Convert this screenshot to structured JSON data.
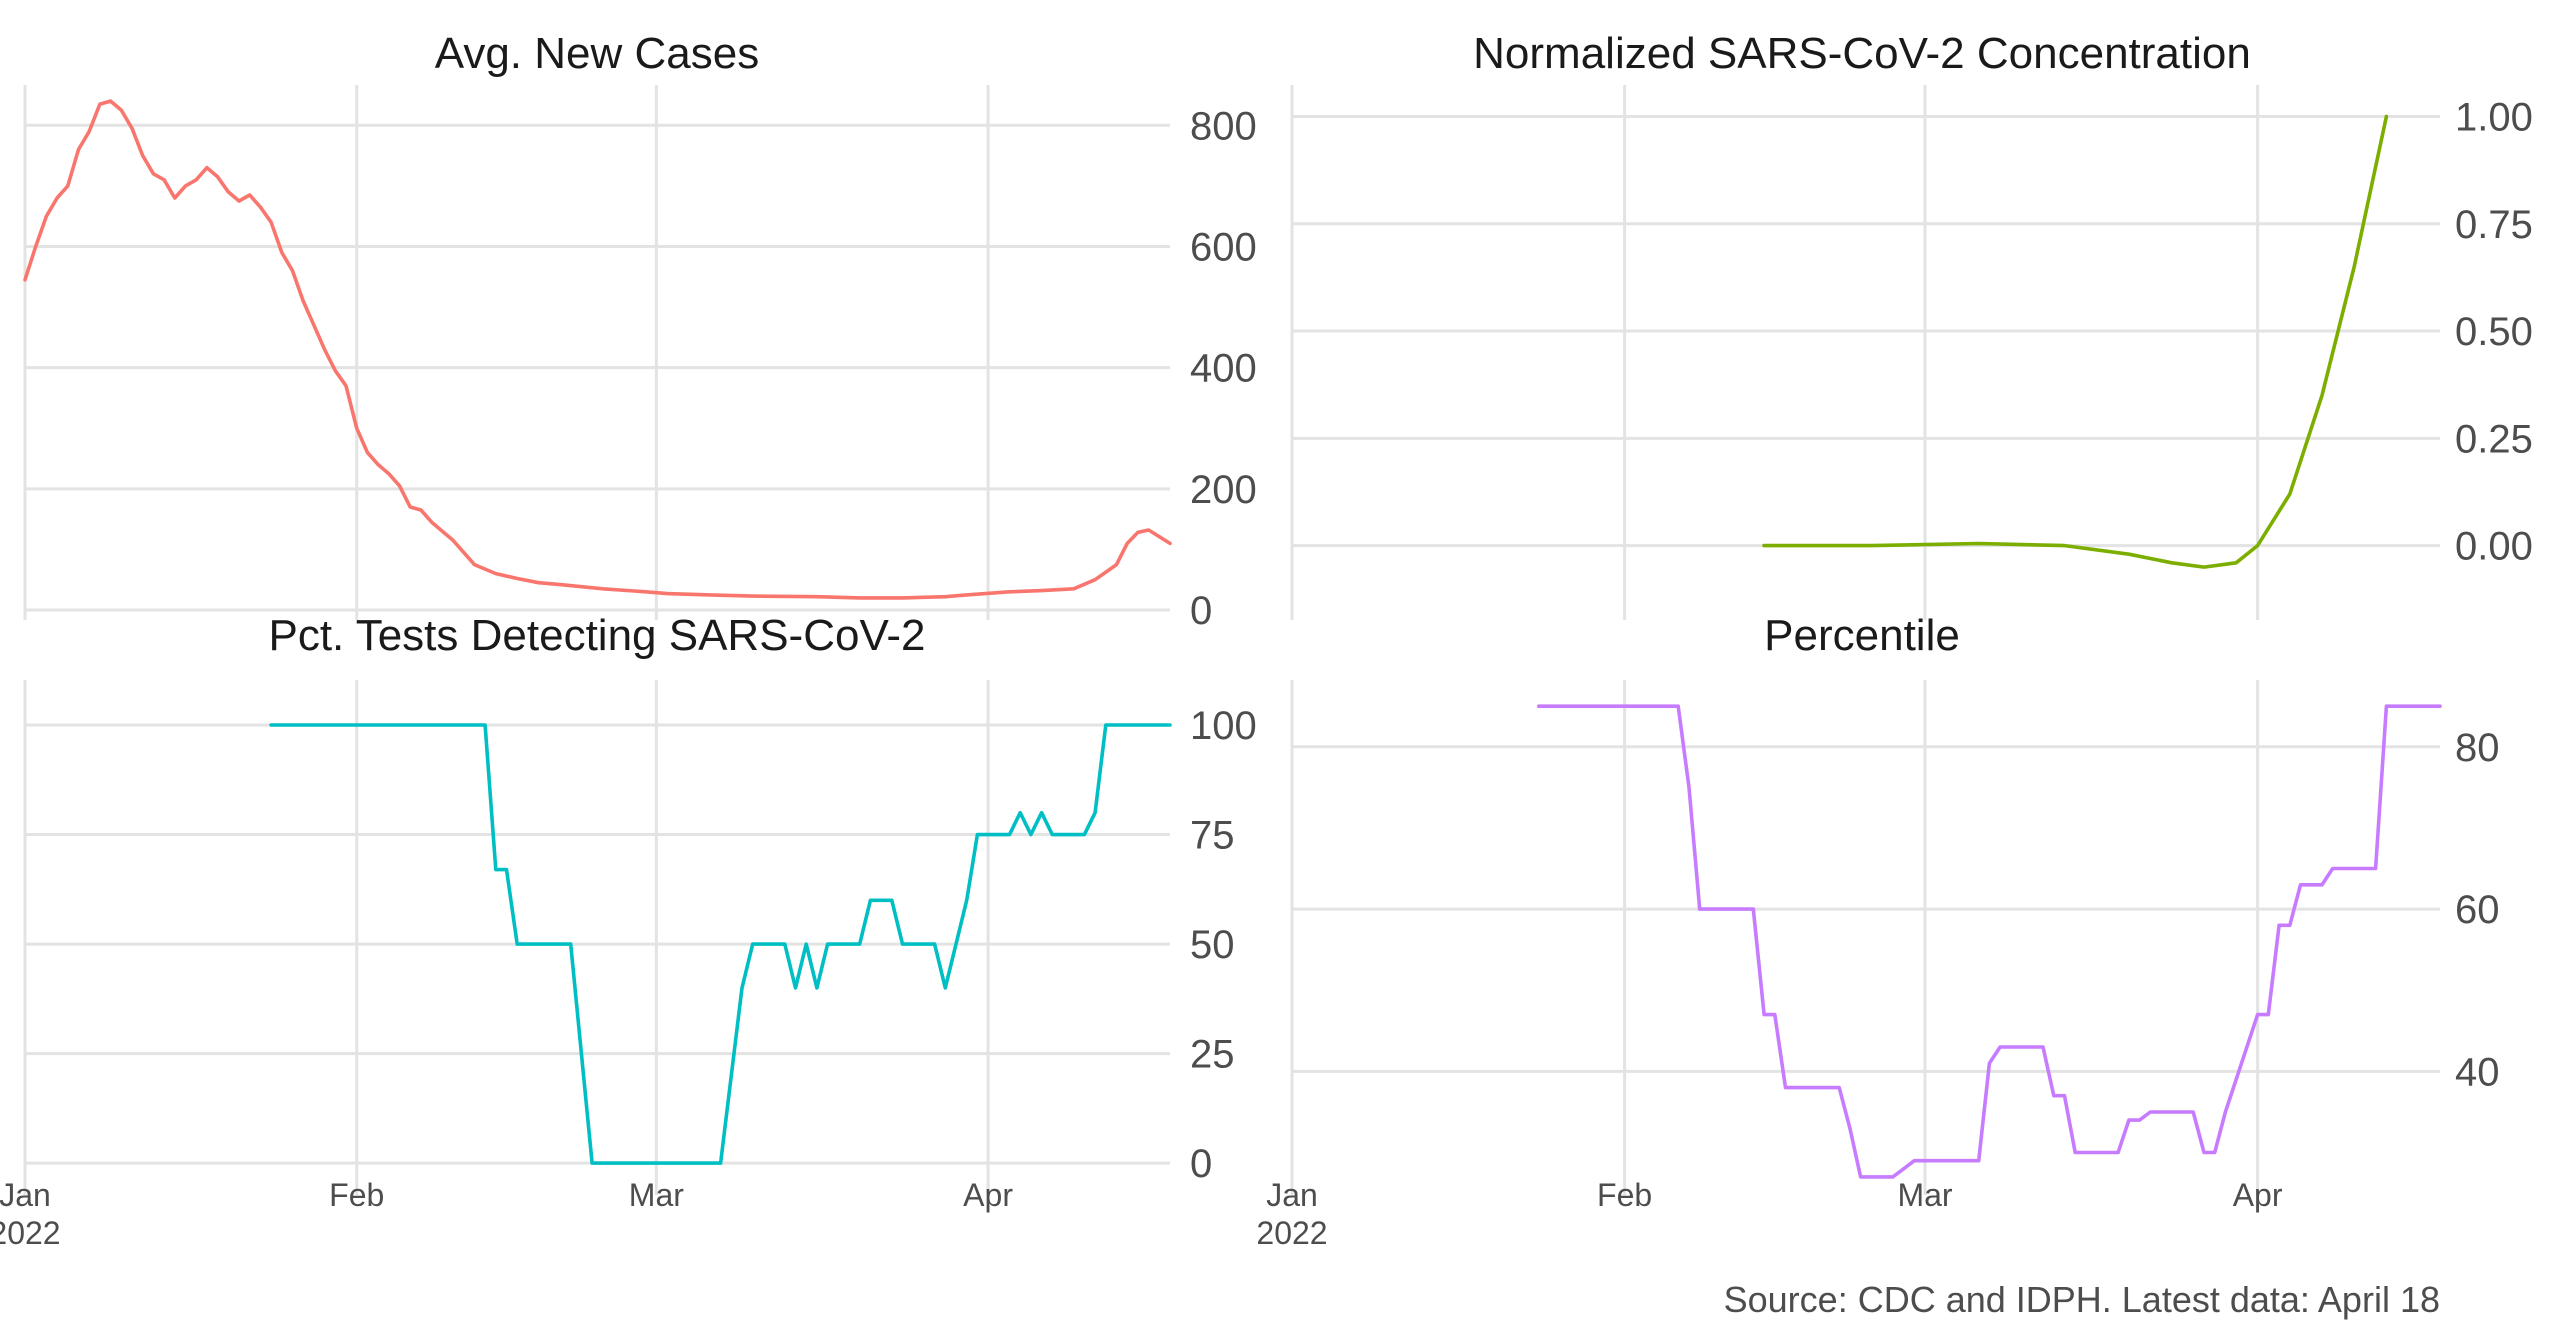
{
  "chart_data": [
    {
      "type": "line",
      "title": "Avg. New Cases",
      "color": "#f8766d",
      "xlim": [
        "2022-01-01",
        "2022-04-18"
      ],
      "ylim": [
        0,
        850
      ],
      "yticks": [
        0,
        200,
        400,
        600,
        800
      ],
      "ytick_labels": [
        "0",
        "200",
        "400",
        "600",
        "800"
      ],
      "xticks": [
        "2022-01-01",
        "2022-02-01",
        "2022-03-01",
        "2022-04-01"
      ],
      "xtick_labels": [
        "Jan\n2022",
        "Feb",
        "Mar",
        "Apr"
      ],
      "show_x_axis_labels": true,
      "series": [
        {
          "x": [
            "2022-01-01",
            "2022-01-02",
            "2022-01-03",
            "2022-01-04",
            "2022-01-05",
            "2022-01-06",
            "2022-01-07",
            "2022-01-08",
            "2022-01-09",
            "2022-01-10",
            "2022-01-11",
            "2022-01-12",
            "2022-01-13",
            "2022-01-14",
            "2022-01-15",
            "2022-01-16",
            "2022-01-17",
            "2022-01-18",
            "2022-01-19",
            "2022-01-20",
            "2022-01-21",
            "2022-01-22",
            "2022-01-23",
            "2022-01-24",
            "2022-01-25",
            "2022-01-26",
            "2022-01-27",
            "2022-01-28",
            "2022-01-29",
            "2022-01-30",
            "2022-01-31",
            "2022-02-01",
            "2022-02-02",
            "2022-02-03",
            "2022-02-04",
            "2022-02-05",
            "2022-02-06",
            "2022-02-07",
            "2022-02-08",
            "2022-02-09",
            "2022-02-10",
            "2022-02-12",
            "2022-02-14",
            "2022-02-16",
            "2022-02-18",
            "2022-02-20",
            "2022-02-24",
            "2022-02-28",
            "2022-03-02",
            "2022-03-06",
            "2022-03-10",
            "2022-03-16",
            "2022-03-20",
            "2022-03-24",
            "2022-03-28",
            "2022-03-30",
            "2022-04-03",
            "2022-04-06",
            "2022-04-09",
            "2022-04-11",
            "2022-04-13",
            "2022-04-14",
            "2022-04-15",
            "2022-04-16",
            "2022-04-18"
          ],
          "y": [
            545,
            600,
            650,
            680,
            700,
            760,
            790,
            835,
            840,
            825,
            795,
            750,
            720,
            710,
            680,
            700,
            710,
            730,
            715,
            690,
            675,
            685,
            665,
            640,
            590,
            560,
            510,
            470,
            430,
            395,
            370,
            300,
            260,
            240,
            225,
            205,
            170,
            165,
            145,
            130,
            115,
            75,
            60,
            52,
            45,
            42,
            35,
            30,
            27,
            25,
            23,
            22,
            20,
            20,
            22,
            25,
            30,
            32,
            35,
            50,
            75,
            110,
            128,
            132,
            110
          ]
        }
      ]
    },
    {
      "type": "line",
      "title": "Normalized SARS-CoV-2 Concentration",
      "color": "#7cae00",
      "xlim": [
        "2022-01-01",
        "2022-04-18"
      ],
      "ylim": [
        -0.15,
        1.05
      ],
      "yticks": [
        0,
        0.25,
        0.5,
        0.75,
        1.0
      ],
      "ytick_labels": [
        "0.00",
        "0.25",
        "0.50",
        "0.75",
        "1.00"
      ],
      "xticks": [
        "2022-01-01",
        "2022-02-01",
        "2022-03-01",
        "2022-04-01"
      ],
      "xtick_labels": [
        "Jan\n2022",
        "Feb",
        "Mar",
        "Apr"
      ],
      "show_x_axis_labels": true,
      "series": [
        {
          "x": [
            "2022-02-14",
            "2022-02-24",
            "2022-03-06",
            "2022-03-14",
            "2022-03-20",
            "2022-03-24",
            "2022-03-27",
            "2022-03-30",
            "2022-04-01",
            "2022-04-04",
            "2022-04-07",
            "2022-04-10",
            "2022-04-13"
          ],
          "y": [
            0.0,
            0.0,
            0.005,
            0.0,
            -0.02,
            -0.04,
            -0.05,
            -0.04,
            0.0,
            0.12,
            0.35,
            0.65,
            1.0
          ]
        }
      ]
    },
    {
      "type": "line",
      "title": "Pct. Tests Detecting SARS-CoV-2",
      "color": "#00bfc4",
      "xlim": [
        "2022-01-01",
        "2022-04-18"
      ],
      "ylim": [
        -5,
        108
      ],
      "yticks": [
        0,
        25,
        50,
        75,
        100
      ],
      "ytick_labels": [
        "0",
        "25",
        "50",
        "75",
        "100"
      ],
      "xticks": [
        "2022-01-01",
        "2022-02-01",
        "2022-03-01",
        "2022-04-01"
      ],
      "xtick_labels": [
        "Jan\n2022",
        "Feb",
        "Mar",
        "Apr"
      ],
      "show_x_axis_labels": true,
      "series": [
        {
          "x": [
            "2022-01-24",
            "2022-02-13",
            "2022-02-14",
            "2022-02-15",
            "2022-02-16",
            "2022-02-21",
            "2022-02-23",
            "2022-03-07",
            "2022-03-09",
            "2022-03-10",
            "2022-03-13",
            "2022-03-14",
            "2022-03-15",
            "2022-03-16",
            "2022-03-17",
            "2022-03-20",
            "2022-03-21",
            "2022-03-23",
            "2022-03-24",
            "2022-03-27",
            "2022-03-28",
            "2022-03-30",
            "2022-03-31",
            "2022-04-03",
            "2022-04-04",
            "2022-04-05",
            "2022-04-06",
            "2022-04-07",
            "2022-04-10",
            "2022-04-11",
            "2022-04-12",
            "2022-04-18"
          ],
          "y": [
            100,
            100,
            67,
            67,
            50,
            50,
            0,
            0,
            40,
            50,
            50,
            40,
            50,
            40,
            50,
            50,
            60,
            60,
            50,
            50,
            40,
            60,
            75,
            75,
            80,
            75,
            80,
            75,
            75,
            80,
            100,
            100
          ]
        }
      ]
    },
    {
      "type": "line",
      "title": "Percentile",
      "color": "#c77cff",
      "xlim": [
        "2022-01-01",
        "2022-04-18"
      ],
      "ylim": [
        26,
        87
      ],
      "yticks": [
        40,
        60,
        80
      ],
      "ytick_labels": [
        "40",
        "60",
        "80"
      ],
      "xticks": [
        "2022-01-01",
        "2022-02-01",
        "2022-03-01",
        "2022-04-01"
      ],
      "xtick_labels": [
        "Jan\n2022",
        "Feb",
        "Mar",
        "Apr"
      ],
      "show_x_axis_labels": true,
      "series": [
        {
          "x": [
            "2022-01-24",
            "2022-02-06",
            "2022-02-07",
            "2022-02-08",
            "2022-02-13",
            "2022-02-14",
            "2022-02-15",
            "2022-02-16",
            "2022-02-21",
            "2022-02-22",
            "2022-02-23",
            "2022-02-26",
            "2022-02-27",
            "2022-02-28",
            "2022-03-01",
            "2022-03-06",
            "2022-03-07",
            "2022-03-08",
            "2022-03-12",
            "2022-03-13",
            "2022-03-14",
            "2022-03-15",
            "2022-03-19",
            "2022-03-20",
            "2022-03-21",
            "2022-03-22",
            "2022-03-26",
            "2022-03-27",
            "2022-03-28",
            "2022-03-29",
            "2022-04-01",
            "2022-04-02",
            "2022-04-03",
            "2022-04-04",
            "2022-04-05",
            "2022-04-06",
            "2022-04-07",
            "2022-04-08",
            "2022-04-09",
            "2022-04-12",
            "2022-04-13",
            "2022-04-18"
          ],
          "y": [
            85,
            85,
            75,
            60,
            60,
            47,
            47,
            38,
            38,
            33,
            27,
            27,
            28,
            29,
            29,
            29,
            41,
            43,
            43,
            37,
            37,
            30,
            30,
            34,
            34,
            35,
            35,
            30,
            30,
            35,
            47,
            47,
            58,
            58,
            63,
            63,
            63,
            65,
            65,
            65,
            85,
            85
          ]
        }
      ]
    }
  ],
  "caption": "Source: CDC and IDPH. Latest data: April 18"
}
